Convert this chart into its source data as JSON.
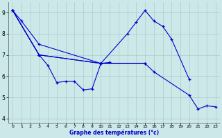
{
  "background_color": "#cce8e8",
  "grid_color": "#aacccc",
  "line_color": "#0000cc",
  "xlabel": "Graphe des températures (°c)",
  "xlim": [
    -0.5,
    23.5
  ],
  "ylim": [
    3.8,
    9.5
  ],
  "yticks": [
    4,
    5,
    6,
    7,
    8,
    9
  ],
  "xticks": [
    0,
    1,
    2,
    3,
    4,
    5,
    6,
    7,
    8,
    9,
    10,
    11,
    12,
    13,
    14,
    15,
    16,
    17,
    18,
    19,
    20,
    21,
    22,
    23
  ],
  "series": [
    [
      [
        0,
        9.1
      ],
      [
        1,
        8.6
      ],
      [
        3,
        7.5
      ],
      [
        10,
        6.6
      ],
      [
        15,
        6.6
      ]
    ],
    [
      [
        0,
        9.1
      ],
      [
        3,
        7.0
      ],
      [
        4,
        6.5
      ],
      [
        5,
        5.7
      ],
      [
        6,
        5.75
      ],
      [
        7,
        5.75
      ],
      [
        8,
        5.35
      ],
      [
        9,
        5.4
      ],
      [
        10,
        6.6
      ],
      [
        11,
        6.65
      ]
    ],
    [
      [
        0,
        9.1
      ],
      [
        3,
        7.0
      ],
      [
        10,
        6.6
      ],
      [
        13,
        8.0
      ],
      [
        14,
        8.55
      ],
      [
        15,
        9.1
      ],
      [
        16,
        8.6
      ],
      [
        17,
        8.35
      ],
      [
        18,
        7.75
      ],
      [
        20,
        5.85
      ]
    ],
    [
      [
        0,
        9.1
      ],
      [
        3,
        7.0
      ],
      [
        10,
        6.6
      ],
      [
        15,
        6.6
      ],
      [
        16,
        6.2
      ],
      [
        20,
        5.1
      ],
      [
        21,
        4.45
      ],
      [
        22,
        4.6
      ],
      [
        23,
        4.55
      ]
    ]
  ]
}
